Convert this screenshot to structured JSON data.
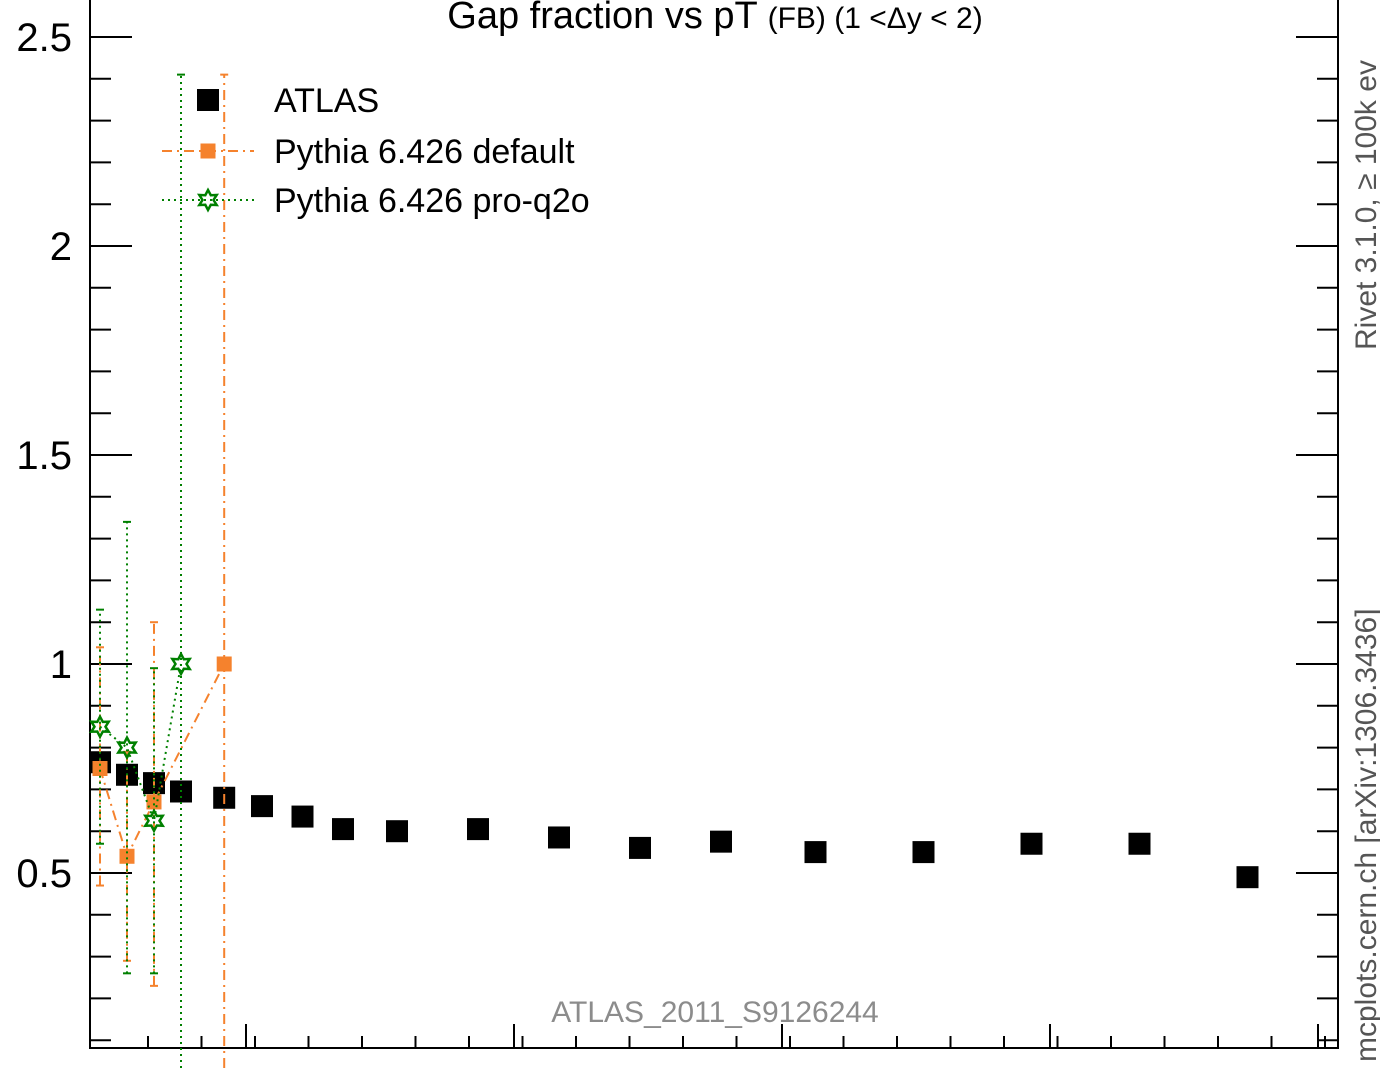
{
  "chart_data": {
    "type": "scatter",
    "title": {
      "main": "Gap fraction vs pT",
      "sub": "(FB)",
      "range": "(1 <Δy < 2)"
    },
    "xlabel": "",
    "ylabel": "",
    "ylim": [
      0,
      2.6
    ],
    "yticks": [
      0.5,
      1,
      1.5,
      2,
      2.5
    ],
    "ytick_labels": [
      "0.5",
      "1",
      "1.5",
      "2",
      "2.5"
    ],
    "x_scale": "bin index",
    "xlim": [
      0,
      45
    ],
    "grid": false,
    "legend_position": "top-left",
    "watermark": "ATLAS_2011_S9126244",
    "side_labels": {
      "lower": "mcplots.cern.ch [arXiv:1306.3436]",
      "upper": "Rivet 3.1.0, ≥ 100k ev"
    },
    "series": [
      {
        "name": "ATLAS",
        "color": "#000000",
        "marker": "square",
        "line": "none",
        "x": [
          1.0,
          2.0,
          3.0,
          4.0,
          5.6,
          7.0,
          8.5,
          10.0,
          12.0,
          15.0,
          18.0,
          21.0,
          24.0,
          27.5,
          31.5,
          35.5,
          39.5,
          43.5
        ],
        "y": [
          0.765,
          0.735,
          0.715,
          0.695,
          0.68,
          0.66,
          0.635,
          0.605,
          0.6,
          0.605,
          0.585,
          0.56,
          0.575,
          0.55,
          0.55,
          0.57,
          0.57,
          0.49
        ]
      },
      {
        "name": "Pythia 6.426 default",
        "color": "#f5822d",
        "marker": "square",
        "line": "dash-dot",
        "x": [
          1.0,
          2.0,
          3.0,
          5.6
        ],
        "y": [
          0.75,
          0.54,
          0.67,
          1.0
        ],
        "y_low": [
          0.47,
          0.29,
          0.23,
          0.0
        ],
        "y_high": [
          1.04,
          0.79,
          1.1,
          2.41
        ]
      },
      {
        "name": "Pythia 6.426 pro-q2o",
        "color": "#008000",
        "marker": "star",
        "line": "dotted",
        "x": [
          1.0,
          2.0,
          3.0,
          4.0
        ],
        "y": [
          0.85,
          0.8,
          0.625,
          1.0
        ],
        "y_low": [
          0.57,
          0.26,
          0.26,
          0.0
        ],
        "y_high": [
          1.13,
          1.34,
          0.99,
          2.41
        ]
      }
    ]
  }
}
